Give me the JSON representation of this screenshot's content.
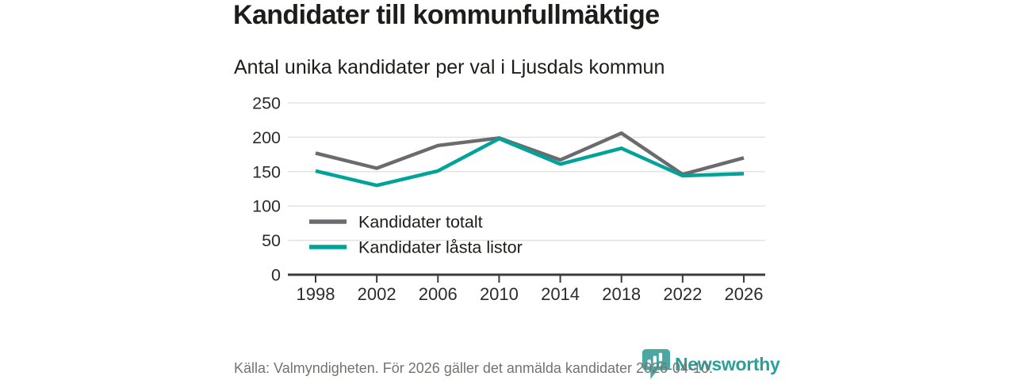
{
  "header": {
    "title": "Kandidater till kommunfullmäktige",
    "subtitle": "Antal unika kandidater per val i Ljusdals kommun"
  },
  "chart_data": {
    "type": "line",
    "title": "Kandidater till kommunfullmäktige",
    "subtitle": "Antal unika kandidater per val i Ljusdals kommun",
    "x": [
      "1998",
      "2002",
      "2006",
      "2010",
      "2014",
      "2018",
      "2022",
      "2026"
    ],
    "series": [
      {
        "name": "Kandidater totalt",
        "color": "#6b6b6f",
        "values": [
          177,
          155,
          188,
          199,
          167,
          206,
          146,
          170
        ]
      },
      {
        "name": "Kandidater låsta listor",
        "color": "#00a39a",
        "values": [
          151,
          130,
          151,
          198,
          161,
          184,
          144,
          147
        ]
      }
    ],
    "yticks": [
      0,
      50,
      100,
      150,
      200,
      250
    ],
    "ylim": [
      0,
      250
    ],
    "grid": "horizontal",
    "legend_position": "inside-bottom-left"
  },
  "footer": {
    "source_note": "Källa: Valmyndigheten. För 2026 gäller det anmälda kandidater 2026-04-10."
  },
  "branding": {
    "logo_text": "Newsworthy",
    "logo_icon": "newsworthy-chart-bubble-icon",
    "brand_color": "#2aa099",
    "icon_color": "#4ba7a1"
  },
  "style": {
    "axis_color": "#3b3b3a",
    "grid_color": "#e3e3e3",
    "tick_label_color": "#2c2c2b",
    "legend_text_color": "#1d1d1b"
  }
}
